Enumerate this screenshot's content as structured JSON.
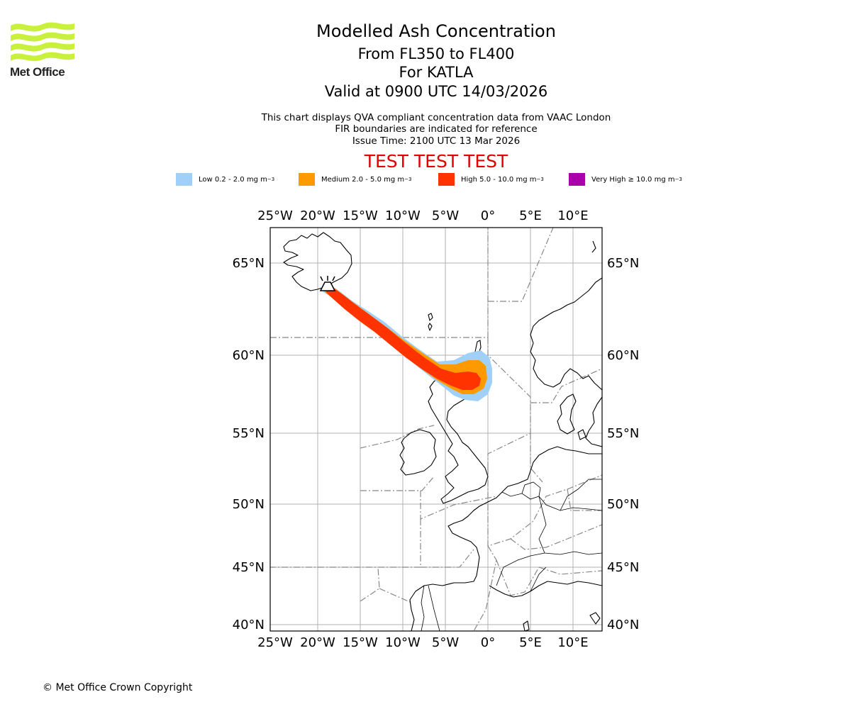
{
  "logo": {
    "text": "Met Office",
    "colors": {
      "waves": "#c8f03c"
    }
  },
  "header": {
    "title": "Modelled Ash Concentration",
    "level_range": "From FL350 to FL400",
    "volcano": "For KATLA",
    "valid_time": "Valid at 0900 UTC 14/03/2026",
    "description_1": "This chart displays QVA compliant concentration data from VAAC London",
    "description_2": "FIR boundaries are indicated for reference",
    "issue_time": "Issue Time: 2100 UTC 13 Mar 2026",
    "test_banner": "TEST TEST TEST"
  },
  "legend": {
    "items": [
      {
        "label": "Low 0.2 - 2.0 mg m",
        "color": "#a0d0f8"
      },
      {
        "label": "Medium 2.0 - 5.0 mg m",
        "color": "#ff9900"
      },
      {
        "label": "High 5.0 - 10.0 mg m",
        "color": "#ff3300"
      },
      {
        "label": "Very High ≥ 10.0 mg m",
        "color": "#aa00aa"
      }
    ],
    "unit_exponent": "−3"
  },
  "map": {
    "lon_ticks": [
      "25°W",
      "20°W",
      "15°W",
      "10°W",
      "5°W",
      "0°",
      "5°E",
      "10°E"
    ],
    "lat_ticks": [
      "65°N",
      "60°N",
      "55°N",
      "50°N",
      "45°N",
      "40°N"
    ],
    "colors": {
      "grid": "#b0b0b0",
      "coast": "#000000",
      "fir": "#888888"
    }
  },
  "footer": {
    "copyright": "© Met Office Crown Copyright"
  }
}
